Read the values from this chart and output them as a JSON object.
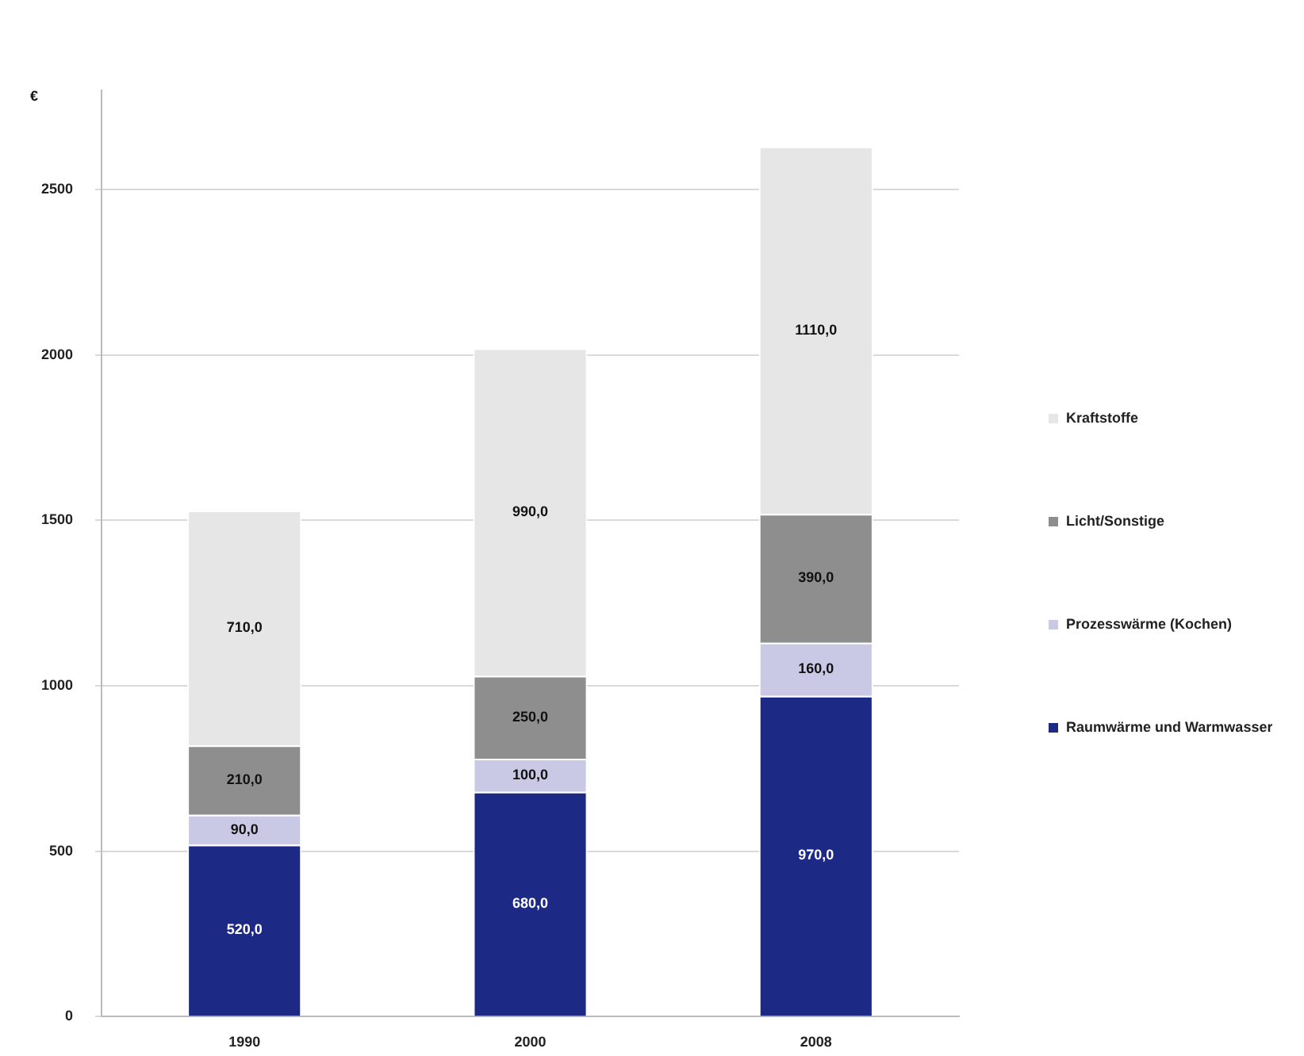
{
  "chart_data": {
    "type": "bar",
    "stacked": true,
    "ylabel": "€",
    "categories": [
      "1990",
      "2000",
      "2008"
    ],
    "series": [
      {
        "name": "Raumwärme und Warmwasser",
        "color": "#1c2a86",
        "values": [
          520,
          680,
          970
        ],
        "value_labels": [
          "520,0",
          "680,0",
          "970,0"
        ]
      },
      {
        "name": "Prozesswärme (Kochen)",
        "color": "#c9c9e6",
        "values": [
          90,
          100,
          160
        ],
        "value_labels": [
          "90,0",
          "100,0",
          "160,0"
        ]
      },
      {
        "name": "Licht/Sonstige",
        "color": "#8e8e8e",
        "values": [
          210,
          250,
          390
        ],
        "value_labels": [
          "210,0",
          "250,0",
          "390,0"
        ]
      },
      {
        "name": "Kraftstoffe",
        "color": "#e6e6e6",
        "values": [
          710,
          990,
          1110
        ],
        "value_labels": [
          "710,0",
          "990,0",
          "1110,0"
        ]
      }
    ],
    "ylim": [
      0,
      2800
    ],
    "yticks": [
      0,
      500,
      1000,
      1500,
      2000,
      2500
    ],
    "grid": "y",
    "legend": "right"
  }
}
